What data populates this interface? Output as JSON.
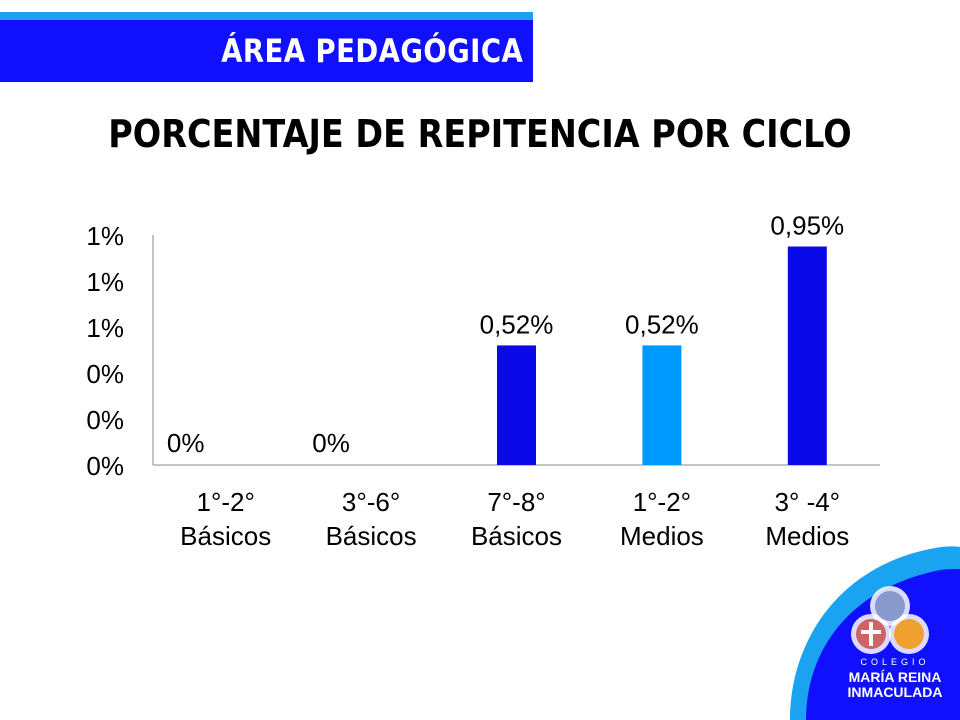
{
  "header": {
    "banner_text": "ÁREA PEDAGÓGICA",
    "banner_color": "#1010ff",
    "stripe_color": "#1aa3f0"
  },
  "logo": {
    "small_text": "COLEGIO",
    "name": "MARÍA REINA",
    "sub": "INMACULADA"
  },
  "chart_data": {
    "type": "bar",
    "title": "PORCENTAJE DE REPITENCIA POR CICLO",
    "categories": [
      [
        "1°-2°",
        "Básicos"
      ],
      [
        "3°-6°",
        "Básicos"
      ],
      [
        "7°-8°",
        "Básicos"
      ],
      [
        "1°-2°",
        "Medios"
      ],
      [
        "3° -4°",
        "Medios"
      ]
    ],
    "values": [
      0,
      0,
      0.52,
      0.52,
      0.95
    ],
    "data_labels": [
      "0%",
      "0%",
      "0,52%",
      "0,52%",
      "0,95%"
    ],
    "bar_colors": [
      "#0a0ae8",
      "#0a0ae8",
      "#0a0ae8",
      "#0099ff",
      "#0a0ae8"
    ],
    "y_tick_labels": [
      "0%",
      "0%",
      "0%",
      "1%",
      "1%",
      "1%"
    ],
    "ylim": [
      0,
      1
    ],
    "grid": false,
    "legend": "none"
  }
}
